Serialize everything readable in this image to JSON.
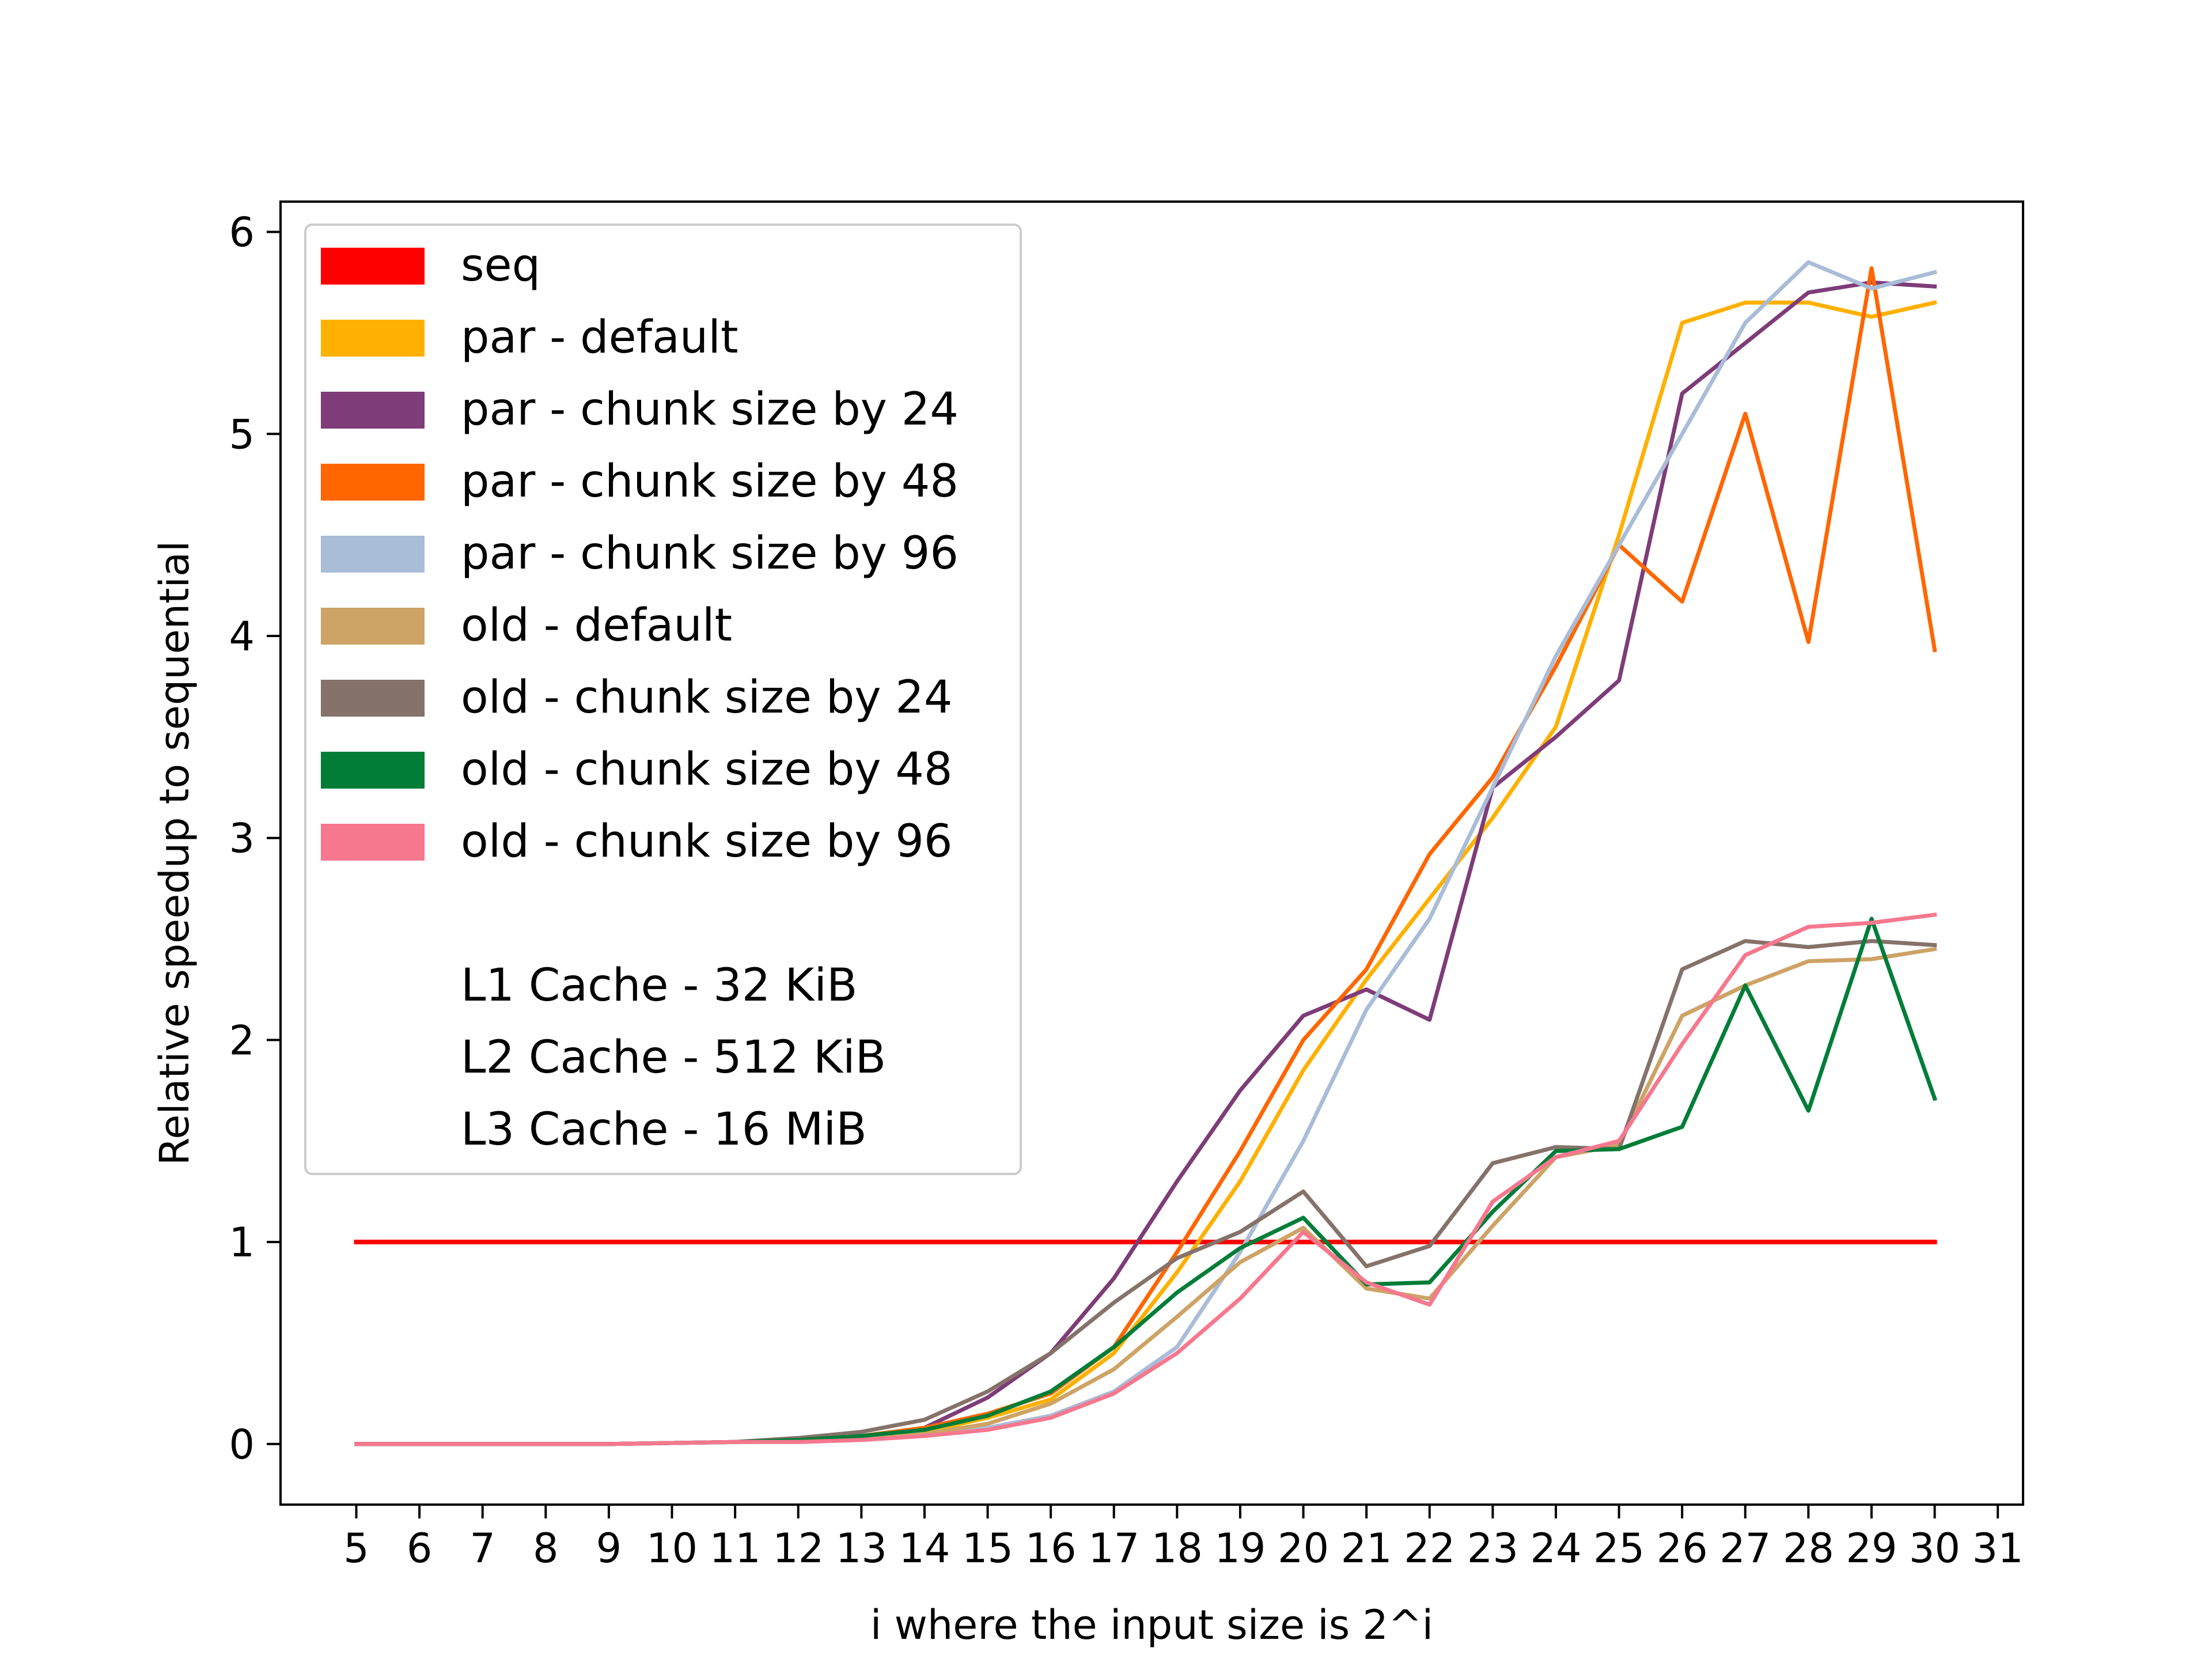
{
  "chart_data": {
    "type": "line",
    "xlabel": "i where the input size is 2^i",
    "ylabel": "Relative speedup to sequential",
    "xlim": [
      3.8,
      31.4
    ],
    "ylim": [
      -0.3,
      6.15
    ],
    "x_ticks": [
      5,
      6,
      7,
      8,
      9,
      10,
      11,
      12,
      13,
      14,
      15,
      16,
      17,
      18,
      19,
      20,
      21,
      22,
      23,
      24,
      25,
      26,
      27,
      28,
      29,
      30,
      31
    ],
    "y_ticks": [
      0,
      1,
      2,
      3,
      4,
      5,
      6
    ],
    "grid": false,
    "legend_position": "upper-left",
    "legend_notes": [
      "L1 Cache - 32 KiB",
      "L2 Cache - 512 KiB",
      "L3 Cache - 16 MiB"
    ],
    "x": [
      5,
      6,
      7,
      8,
      9,
      10,
      11,
      12,
      13,
      14,
      15,
      16,
      17,
      18,
      19,
      20,
      21,
      22,
      23,
      24,
      25,
      26,
      27,
      28,
      29,
      30
    ],
    "series": [
      {
        "name": "seq",
        "color": "#ff0000",
        "values": [
          1,
          1,
          1,
          1,
          1,
          1,
          1,
          1,
          1,
          1,
          1,
          1,
          1,
          1,
          1,
          1,
          1,
          1,
          1,
          1,
          1,
          1,
          1,
          1,
          1,
          1
        ]
      },
      {
        "name": "par - default",
        "color": "#ffb000",
        "values": [
          0,
          0,
          0,
          0,
          0,
          0.005,
          0.01,
          0.02,
          0.03,
          0.06,
          0.13,
          0.22,
          0.45,
          0.85,
          1.3,
          1.85,
          2.3,
          2.7,
          3.1,
          3.55,
          4.5,
          5.55,
          5.65,
          5.65,
          5.58,
          5.65
        ]
      },
      {
        "name": "par - chunk size by 24",
        "color": "#7e3c78",
        "values": [
          0,
          0,
          0,
          0,
          0,
          0.005,
          0.01,
          0.02,
          0.04,
          0.08,
          0.23,
          0.45,
          0.82,
          1.3,
          1.75,
          2.12,
          2.25,
          2.1,
          3.25,
          3.5,
          3.78,
          5.2,
          5.45,
          5.7,
          5.75,
          5.73
        ]
      },
      {
        "name": "par - chunk size by 48",
        "color": "#ff6600",
        "values": [
          0,
          0,
          0,
          0,
          0,
          0.005,
          0.01,
          0.02,
          0.04,
          0.08,
          0.15,
          0.25,
          0.48,
          0.95,
          1.45,
          2.0,
          2.35,
          2.92,
          3.3,
          3.85,
          4.45,
          4.17,
          5.1,
          3.97,
          5.82,
          3.93
        ]
      },
      {
        "name": "par - chunk size by 96",
        "color": "#a9bcd8",
        "values": [
          0,
          0,
          0,
          0,
          0,
          0.005,
          0.01,
          0.015,
          0.02,
          0.04,
          0.08,
          0.14,
          0.26,
          0.48,
          0.95,
          1.5,
          2.15,
          2.6,
          3.25,
          3.9,
          4.45,
          5.0,
          5.55,
          5.85,
          5.72,
          5.8
        ]
      },
      {
        "name": "old - default",
        "color": "#cda366",
        "values": [
          0,
          0,
          0,
          0,
          0,
          0.005,
          0.01,
          0.02,
          0.03,
          0.05,
          0.1,
          0.2,
          0.37,
          0.63,
          0.9,
          1.07,
          0.77,
          0.72,
          1.08,
          1.42,
          1.48,
          2.12,
          2.27,
          2.39,
          2.4,
          2.45
        ]
      },
      {
        "name": "old - chunk size by 24",
        "color": "#85726a",
        "values": [
          0,
          0,
          0,
          0,
          0,
          0.005,
          0.01,
          0.03,
          0.06,
          0.12,
          0.26,
          0.45,
          0.7,
          0.92,
          1.05,
          1.25,
          0.88,
          0.98,
          1.39,
          1.47,
          1.46,
          2.35,
          2.49,
          2.46,
          2.49,
          2.47
        ]
      },
      {
        "name": "old - chunk size by 48",
        "color": "#017d38",
        "values": [
          0,
          0,
          0,
          0,
          0,
          0.005,
          0.01,
          0.02,
          0.04,
          0.07,
          0.14,
          0.26,
          0.48,
          0.75,
          0.97,
          1.12,
          0.79,
          0.8,
          1.15,
          1.45,
          1.46,
          1.57,
          2.27,
          1.65,
          2.6,
          1.71
        ]
      },
      {
        "name": "old - chunk size by 96",
        "color": "#f6788e",
        "values": [
          0,
          0,
          0,
          0,
          0,
          0.005,
          0.01,
          0.01,
          0.02,
          0.04,
          0.07,
          0.13,
          0.25,
          0.45,
          0.72,
          1.05,
          0.8,
          0.69,
          1.2,
          1.42,
          1.5,
          1.98,
          2.42,
          2.56,
          2.58,
          2.62
        ]
      }
    ]
  }
}
